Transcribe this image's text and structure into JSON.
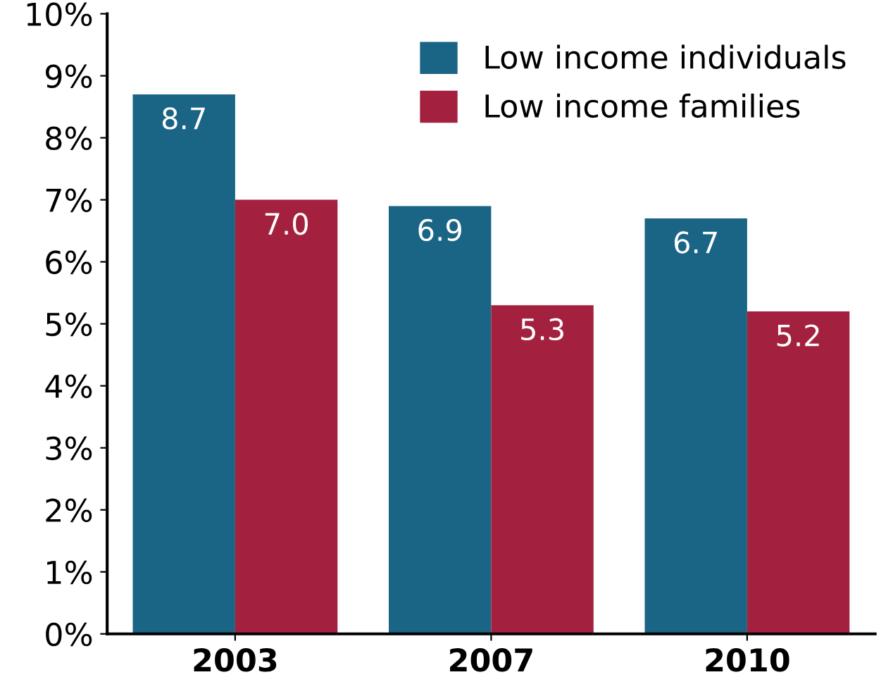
{
  "chart_data": {
    "type": "bar",
    "categories": [
      "2003",
      "2007",
      "2010"
    ],
    "series": [
      {
        "name": "Low income individuals",
        "color": "#1a6585",
        "values": [
          8.7,
          6.9,
          6.7
        ],
        "value_labels": [
          "8.7",
          "6.9",
          "6.7"
        ]
      },
      {
        "name": "Low income families",
        "color": "#a3213f",
        "values": [
          7.0,
          5.3,
          5.2
        ],
        "value_labels": [
          "7.0",
          "5.3",
          "5.2"
        ]
      }
    ],
    "ylim": [
      0,
      10
    ],
    "yticks": [
      {
        "value": 0,
        "label": "0%"
      },
      {
        "value": 1,
        "label": "1%"
      },
      {
        "value": 2,
        "label": "2%"
      },
      {
        "value": 3,
        "label": "3%"
      },
      {
        "value": 4,
        "label": "4%"
      },
      {
        "value": 5,
        "label": "5%"
      },
      {
        "value": 6,
        "label": "6%"
      },
      {
        "value": 7,
        "label": "7%"
      },
      {
        "value": 8,
        "label": "8%"
      },
      {
        "value": 9,
        "label": "9%"
      },
      {
        "value": 10,
        "label": "10%"
      }
    ],
    "legend": "top right",
    "grid": false
  }
}
